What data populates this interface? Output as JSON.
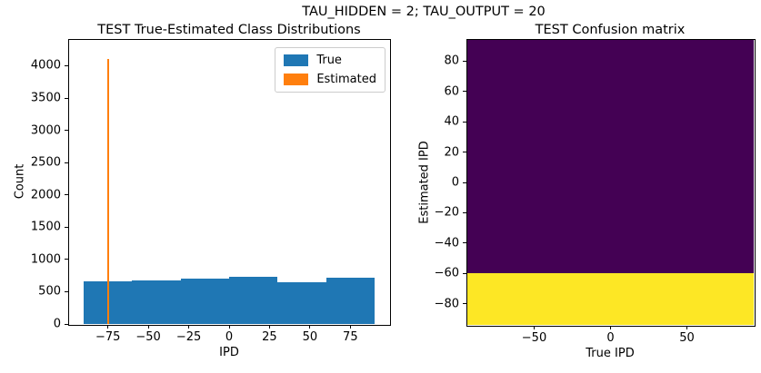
{
  "figure": {
    "suptitle": "TAU_HIDDEN = 2; TAU_OUTPUT = 20",
    "background": "#ffffff"
  },
  "chart_data": [
    {
      "type": "bar",
      "title": "TEST True-Estimated Class Distributions",
      "xlabel": "IPD",
      "ylabel": "Count",
      "xlim": [
        -99,
        99
      ],
      "ylim": [
        0,
        4400
      ],
      "xticks": [
        -75,
        -50,
        -25,
        0,
        25,
        50,
        75
      ],
      "yticks": [
        0,
        500,
        1000,
        1500,
        2000,
        2500,
        3000,
        3500,
        4000
      ],
      "grid": false,
      "series": [
        {
          "name": "True",
          "color": "#1f77b4",
          "bin_edges": [
            -90,
            -60,
            -30,
            0,
            30,
            60,
            90
          ],
          "counts": [
            655,
            680,
            700,
            730,
            650,
            715
          ]
        },
        {
          "name": "Estimated",
          "color": "#ff7f0e",
          "bin_edges": [
            -75.55,
            -74.45
          ],
          "counts": [
            4100
          ]
        }
      ],
      "legend": {
        "position": "upper right",
        "entries": [
          {
            "label": "True",
            "color": "#1f77b4"
          },
          {
            "label": "Estimated",
            "color": "#ff7f0e"
          }
        ]
      }
    },
    {
      "type": "heatmap",
      "title": "TEST Confusion matrix",
      "xlabel": "True IPD",
      "ylabel": "Estimated IPD",
      "xlim": [
        -93.75,
        93.75
      ],
      "ylim": [
        -93.75,
        93.75
      ],
      "xticks": [
        -50,
        0,
        50
      ],
      "yticks": [
        80,
        60,
        40,
        20,
        0,
        -20,
        -40,
        -60,
        -80
      ],
      "colormap": {
        "name": "viridis",
        "low": "#440154",
        "high": "#fde725"
      },
      "regions": [
        {
          "value": "low",
          "color": "#440154",
          "y_from": -60,
          "y_to": 93.75,
          "note": "zero counts"
        },
        {
          "value": "high",
          "color": "#fde725",
          "y_from": -93.75,
          "y_to": -60,
          "note": "all estimates fall in -90..-60 row"
        }
      ]
    }
  ]
}
